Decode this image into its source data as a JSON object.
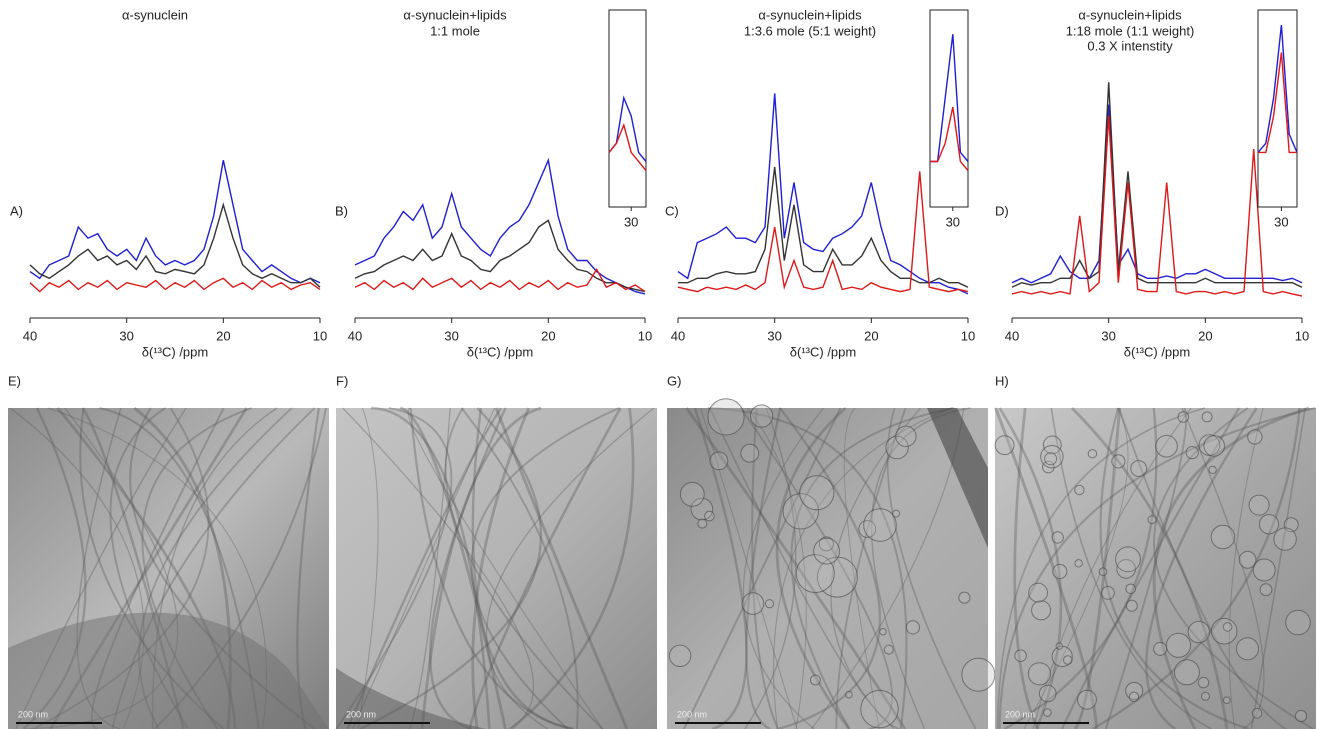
{
  "chart_data": [
    {
      "type": "line",
      "label": "A)",
      "title": "α-synuclein",
      "subtitle": [],
      "x_label": "δ(¹³C) /ppm",
      "xlim": [
        40,
        10
      ],
      "xticks": [
        40,
        30,
        20,
        10
      ],
      "ylim": [
        0,
        1.1
      ],
      "x": [
        40,
        39,
        38,
        37,
        36,
        35,
        34,
        33,
        32,
        31,
        30,
        29,
        28,
        27,
        26,
        25,
        24,
        23,
        22,
        21,
        20,
        19,
        18,
        17,
        16,
        15,
        14,
        13,
        12,
        11,
        10
      ],
      "series": [
        {
          "color": "#1f1fd6",
          "values": [
            0.15,
            0.12,
            0.18,
            0.2,
            0.22,
            0.35,
            0.3,
            0.32,
            0.25,
            0.22,
            0.25,
            0.2,
            0.3,
            0.22,
            0.18,
            0.2,
            0.18,
            0.2,
            0.25,
            0.4,
            0.65,
            0.45,
            0.25,
            0.2,
            0.15,
            0.18,
            0.15,
            0.12,
            0.1,
            0.12,
            0.1
          ]
        },
        {
          "color": "#333333",
          "values": [
            0.18,
            0.14,
            0.12,
            0.15,
            0.18,
            0.22,
            0.25,
            0.2,
            0.22,
            0.18,
            0.2,
            0.16,
            0.22,
            0.15,
            0.14,
            0.16,
            0.15,
            0.14,
            0.18,
            0.3,
            0.45,
            0.3,
            0.18,
            0.14,
            0.12,
            0.14,
            0.12,
            0.1,
            0.1,
            0.12,
            0.08
          ]
        },
        {
          "color": "#e01818",
          "values": [
            0.1,
            0.06,
            0.1,
            0.08,
            0.11,
            0.07,
            0.1,
            0.08,
            0.11,
            0.07,
            0.1,
            0.09,
            0.08,
            0.11,
            0.07,
            0.1,
            0.08,
            0.11,
            0.07,
            0.1,
            0.12,
            0.08,
            0.1,
            0.07,
            0.11,
            0.08,
            0.1,
            0.07,
            0.09,
            0.1,
            0.07
          ]
        }
      ]
    },
    {
      "type": "line",
      "label": "B)",
      "title": "α-synuclein+lipids",
      "subtitle": [
        "1:1 mole"
      ],
      "x_label": "δ(¹³C) /ppm",
      "xlim": [
        40,
        10
      ],
      "xticks": [
        40,
        30,
        20,
        10
      ],
      "ylim": [
        0,
        1.1
      ],
      "x": [
        40,
        39,
        38,
        37,
        36,
        35,
        34,
        33,
        32,
        31,
        30,
        29,
        28,
        27,
        26,
        25,
        24,
        23,
        22,
        21,
        20,
        19,
        18,
        17,
        16,
        15,
        14,
        13,
        12,
        11,
        10
      ],
      "series": [
        {
          "color": "#1f1fd6",
          "values": [
            0.18,
            0.2,
            0.22,
            0.3,
            0.35,
            0.42,
            0.38,
            0.45,
            0.3,
            0.35,
            0.5,
            0.35,
            0.3,
            0.25,
            0.22,
            0.3,
            0.35,
            0.38,
            0.45,
            0.55,
            0.65,
            0.4,
            0.25,
            0.2,
            0.2,
            0.15,
            0.12,
            0.1,
            0.08,
            0.06,
            0.05
          ]
        },
        {
          "color": "#333333",
          "values": [
            0.12,
            0.14,
            0.15,
            0.18,
            0.2,
            0.22,
            0.2,
            0.25,
            0.2,
            0.22,
            0.32,
            0.22,
            0.2,
            0.16,
            0.15,
            0.2,
            0.22,
            0.25,
            0.28,
            0.35,
            0.38,
            0.25,
            0.2,
            0.16,
            0.15,
            0.12,
            0.1,
            0.1,
            0.08,
            0.07,
            0.06
          ]
        },
        {
          "color": "#e01818",
          "values": [
            0.08,
            0.1,
            0.07,
            0.11,
            0.08,
            0.1,
            0.07,
            0.12,
            0.08,
            0.1,
            0.12,
            0.08,
            0.11,
            0.07,
            0.1,
            0.08,
            0.11,
            0.07,
            0.1,
            0.08,
            0.11,
            0.07,
            0.1,
            0.08,
            0.09,
            0.16,
            0.08,
            0.1,
            0.07,
            0.09,
            0.06
          ]
        }
      ],
      "inset": {
        "xlim": [
          33,
          28
        ],
        "xticks": [
          30
        ],
        "ylim": [
          0,
          1.05
        ],
        "x": [
          33,
          32,
          31,
          30,
          29,
          28
        ],
        "series": [
          {
            "color": "#1f1fd6",
            "values": [
              0.3,
              0.35,
              0.6,
              0.5,
              0.3,
              0.25
            ]
          },
          {
            "color": "#e01818",
            "values": [
              0.3,
              0.35,
              0.45,
              0.3,
              0.25,
              0.2
            ]
          }
        ]
      }
    },
    {
      "type": "line",
      "label": "C)",
      "title": "α-synuclein+lipids",
      "subtitle": [
        "1:3.6 mole (5:1 weight)"
      ],
      "x_label": "δ(¹³C) /ppm",
      "xlim": [
        40,
        10
      ],
      "xticks": [
        40,
        30,
        20,
        10
      ],
      "ylim": [
        0,
        1.1
      ],
      "x": [
        40,
        39,
        38,
        37,
        36,
        35,
        34,
        33,
        32,
        31,
        30,
        29,
        28,
        27,
        26,
        25,
        24,
        23,
        22,
        21,
        20,
        19,
        18,
        17,
        16,
        15,
        14,
        13,
        12,
        11,
        10
      ],
      "series": [
        {
          "color": "#1f1fd6",
          "values": [
            0.15,
            0.12,
            0.28,
            0.3,
            0.32,
            0.35,
            0.3,
            0.3,
            0.28,
            0.35,
            0.95,
            0.3,
            0.55,
            0.28,
            0.25,
            0.24,
            0.3,
            0.32,
            0.35,
            0.4,
            0.55,
            0.35,
            0.2,
            0.18,
            0.15,
            0.12,
            0.1,
            0.1,
            0.08,
            0.07,
            0.05
          ]
        },
        {
          "color": "#333333",
          "values": [
            0.1,
            0.1,
            0.12,
            0.12,
            0.14,
            0.15,
            0.14,
            0.14,
            0.15,
            0.25,
            0.62,
            0.2,
            0.45,
            0.18,
            0.15,
            0.15,
            0.25,
            0.18,
            0.18,
            0.22,
            0.3,
            0.2,
            0.15,
            0.12,
            0.12,
            0.1,
            0.1,
            0.12,
            0.1,
            0.1,
            0.08
          ]
        },
        {
          "color": "#e01818",
          "values": [
            0.08,
            0.07,
            0.06,
            0.08,
            0.07,
            0.08,
            0.07,
            0.09,
            0.07,
            0.1,
            0.35,
            0.08,
            0.2,
            0.08,
            0.07,
            0.08,
            0.2,
            0.07,
            0.08,
            0.07,
            0.1,
            0.08,
            0.07,
            0.06,
            0.07,
            0.6,
            0.08,
            0.07,
            0.06,
            0.07,
            0.06
          ]
        }
      ],
      "inset": {
        "xlim": [
          33,
          28
        ],
        "xticks": [
          30
        ],
        "ylim": [
          0,
          1.05
        ],
        "x": [
          33,
          32,
          31,
          30,
          29,
          28
        ],
        "series": [
          {
            "color": "#1f1fd6",
            "values": [
              0.25,
              0.25,
              0.6,
              0.95,
              0.3,
              0.25
            ]
          },
          {
            "color": "#e01818",
            "values": [
              0.25,
              0.25,
              0.35,
              0.55,
              0.25,
              0.2
            ]
          }
        ]
      }
    },
    {
      "type": "line",
      "label": "D)",
      "title": "α-synuclein+lipids",
      "subtitle": [
        "1:18 mole (1:1 weight)",
        "0.3 X intenstity"
      ],
      "x_label": "δ(¹³C) /ppm",
      "xlim": [
        40,
        10
      ],
      "xticks": [
        40,
        30,
        20,
        10
      ],
      "ylim": [
        0,
        1.1
      ],
      "x": [
        40,
        39,
        38,
        37,
        36,
        35,
        34,
        33,
        32,
        31,
        30,
        29,
        28,
        27,
        26,
        25,
        24,
        23,
        22,
        21,
        20,
        19,
        18,
        17,
        16,
        15,
        14,
        13,
        12,
        11,
        10
      ],
      "series": [
        {
          "color": "#1f1fd6",
          "values": [
            0.1,
            0.12,
            0.1,
            0.12,
            0.14,
            0.22,
            0.15,
            0.12,
            0.12,
            0.2,
            0.9,
            0.18,
            0.25,
            0.14,
            0.12,
            0.12,
            0.13,
            0.12,
            0.14,
            0.14,
            0.16,
            0.14,
            0.12,
            0.12,
            0.12,
            0.12,
            0.12,
            0.12,
            0.11,
            0.12,
            0.1
          ]
        },
        {
          "color": "#333333",
          "values": [
            0.08,
            0.1,
            0.09,
            0.1,
            0.1,
            0.12,
            0.12,
            0.2,
            0.12,
            0.15,
            1.0,
            0.15,
            0.6,
            0.12,
            0.1,
            0.1,
            0.1,
            0.1,
            0.1,
            0.1,
            0.12,
            0.1,
            0.1,
            0.1,
            0.1,
            0.1,
            0.1,
            0.1,
            0.1,
            0.1,
            0.08
          ]
        },
        {
          "color": "#e01818",
          "values": [
            0.05,
            0.06,
            0.05,
            0.06,
            0.05,
            0.06,
            0.05,
            0.4,
            0.06,
            0.1,
            0.85,
            0.1,
            0.55,
            0.07,
            0.06,
            0.06,
            0.55,
            0.06,
            0.05,
            0.06,
            0.06,
            0.05,
            0.06,
            0.05,
            0.06,
            0.7,
            0.06,
            0.05,
            0.06,
            0.05,
            0.04
          ]
        }
      ],
      "inset": {
        "xlim": [
          33,
          28
        ],
        "xticks": [
          30
        ],
        "ylim": [
          0,
          1.05
        ],
        "x": [
          33,
          32,
          31,
          30,
          29,
          28
        ],
        "series": [
          {
            "color": "#1f1fd6",
            "values": [
              0.3,
              0.35,
              0.6,
              1.0,
              0.4,
              0.3
            ]
          },
          {
            "color": "#e01818",
            "values": [
              0.3,
              0.3,
              0.5,
              0.85,
              0.3,
              0.3
            ]
          }
        ]
      }
    }
  ],
  "images": [
    {
      "label": "E)",
      "scale_bar": "200 nm"
    },
    {
      "label": "F)",
      "scale_bar": "200 nm"
    },
    {
      "label": "G)",
      "scale_bar": "200 nm"
    },
    {
      "label": "H)",
      "scale_bar": "200 nm"
    }
  ]
}
